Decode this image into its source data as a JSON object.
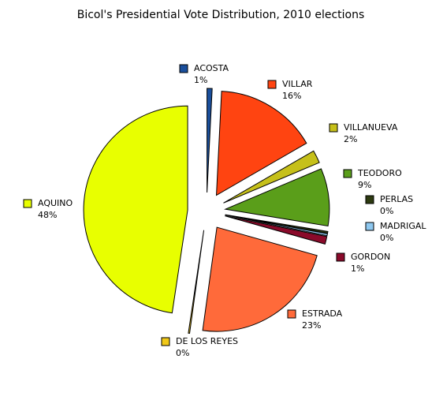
{
  "chart_data": {
    "type": "pie",
    "title": "Bicol's Presidential Vote Distribution, 2010 elections",
    "categories": [
      "ACOSTA",
      "VILLAR",
      "VILLANUEVA",
      "TEODORO",
      "PERLAS",
      "MADRIGAL",
      "GORDON",
      "ESTRADA",
      "DE LOS REYES",
      "AQUINO"
    ],
    "values": [
      0.8,
      16,
      2,
      9,
      0.3,
      0.3,
      1.2,
      23,
      0.2,
      48
    ],
    "value_labels": [
      "1%",
      "16%",
      "2%",
      "9%",
      "0%",
      "0%",
      "1%",
      "23%",
      "0%",
      "48%"
    ],
    "colors": [
      "#1a4f9c",
      "#ff4411",
      "#c6c01a",
      "#5a9e1a",
      "#2d3a10",
      "#8ec8f0",
      "#8a0a2a",
      "#ff6a3a",
      "#f0c818",
      "#e8ff00"
    ]
  }
}
